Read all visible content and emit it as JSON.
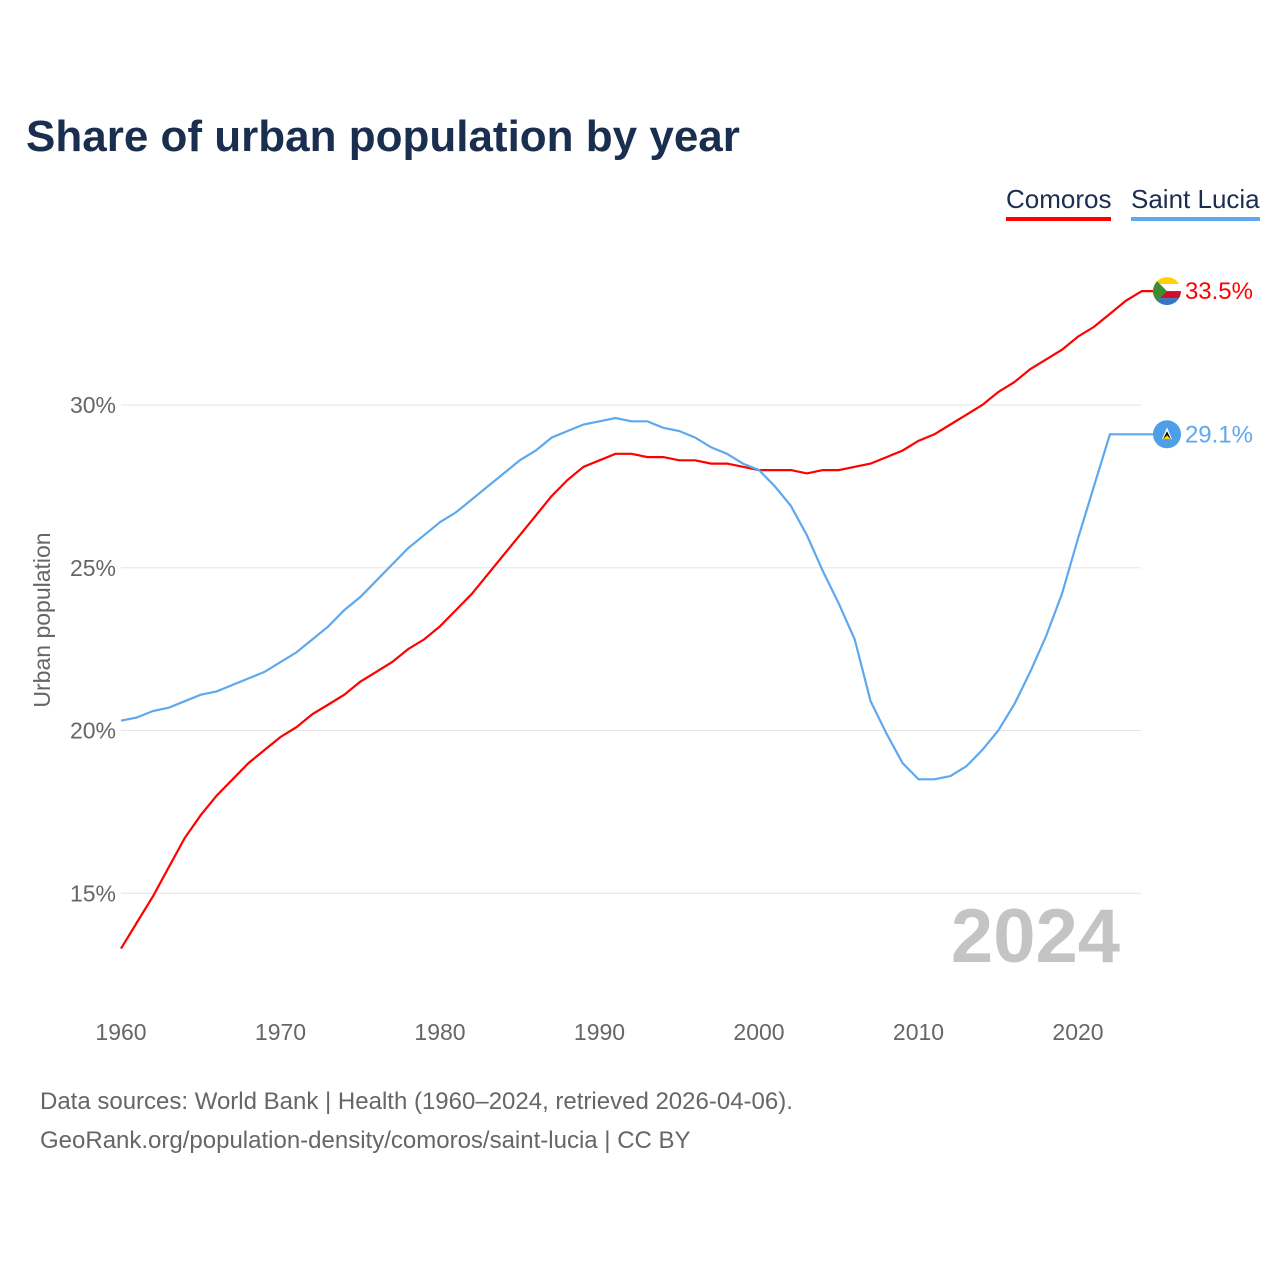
{
  "title": "Share of urban population by year",
  "legend": [
    {
      "name": "Comoros",
      "color": "#ff0000"
    },
    {
      "name": "Saint Lucia",
      "color": "#5ea8ee"
    }
  ],
  "year_watermark": "2024",
  "sources": {
    "line1": "Data sources: World Bank | Health (1960–2024, retrieved 2026-04-06).",
    "line2": "GeoRank.org/population-density/comoros/saint-lucia | CC BY"
  },
  "chart_data": {
    "type": "line",
    "title": "Share of urban population by year",
    "xlabel": "",
    "ylabel": "Urban population",
    "x_start": 1960,
    "x_end": 2024,
    "xticks": [
      1960,
      1970,
      1980,
      1990,
      2000,
      2010,
      2020
    ],
    "yticks": [
      15,
      20,
      25,
      30
    ],
    "ytick_labels": [
      "15%",
      "20%",
      "25%",
      "30%"
    ],
    "grid": true,
    "legend_position": "top-right",
    "series": [
      {
        "name": "Comoros",
        "color": "#ff0000",
        "end_label": "33.5%",
        "values": [
          13.3,
          14.1,
          14.9,
          15.8,
          16.7,
          17.4,
          18.0,
          18.5,
          19.0,
          19.4,
          19.8,
          20.1,
          20.5,
          20.8,
          21.1,
          21.5,
          21.8,
          22.1,
          22.5,
          22.8,
          23.2,
          23.7,
          24.2,
          24.8,
          25.4,
          26.0,
          26.6,
          27.2,
          27.7,
          28.1,
          28.3,
          28.5,
          28.5,
          28.4,
          28.4,
          28.3,
          28.3,
          28.2,
          28.2,
          28.1,
          28.0,
          28.0,
          28.0,
          27.9,
          28.0,
          28.0,
          28.1,
          28.2,
          28.4,
          28.6,
          28.9,
          29.1,
          29.4,
          29.7,
          30.0,
          30.4,
          30.7,
          31.1,
          31.4,
          31.7,
          32.1,
          32.4,
          32.8,
          33.2,
          33.5
        ]
      },
      {
        "name": "Saint Lucia",
        "color": "#5ea8ee",
        "end_label": "29.1%",
        "values": [
          20.3,
          20.4,
          20.6,
          20.7,
          20.9,
          21.1,
          21.2,
          21.4,
          21.6,
          21.8,
          22.1,
          22.4,
          22.8,
          23.2,
          23.7,
          24.1,
          24.6,
          25.1,
          25.6,
          26.0,
          26.4,
          26.7,
          27.1,
          27.5,
          27.9,
          28.3,
          28.6,
          29.0,
          29.2,
          29.4,
          29.5,
          29.6,
          29.5,
          29.5,
          29.3,
          29.2,
          29.0,
          28.7,
          28.5,
          28.2,
          28.0,
          27.5,
          26.9,
          26.0,
          24.9,
          23.9,
          22.8,
          20.9,
          19.9,
          19.0,
          18.5,
          18.5,
          18.6,
          18.9,
          19.4,
          20.0,
          20.8,
          21.8,
          22.9,
          24.2,
          25.9,
          27.5,
          29.1,
          29.1,
          29.1
        ]
      }
    ]
  }
}
